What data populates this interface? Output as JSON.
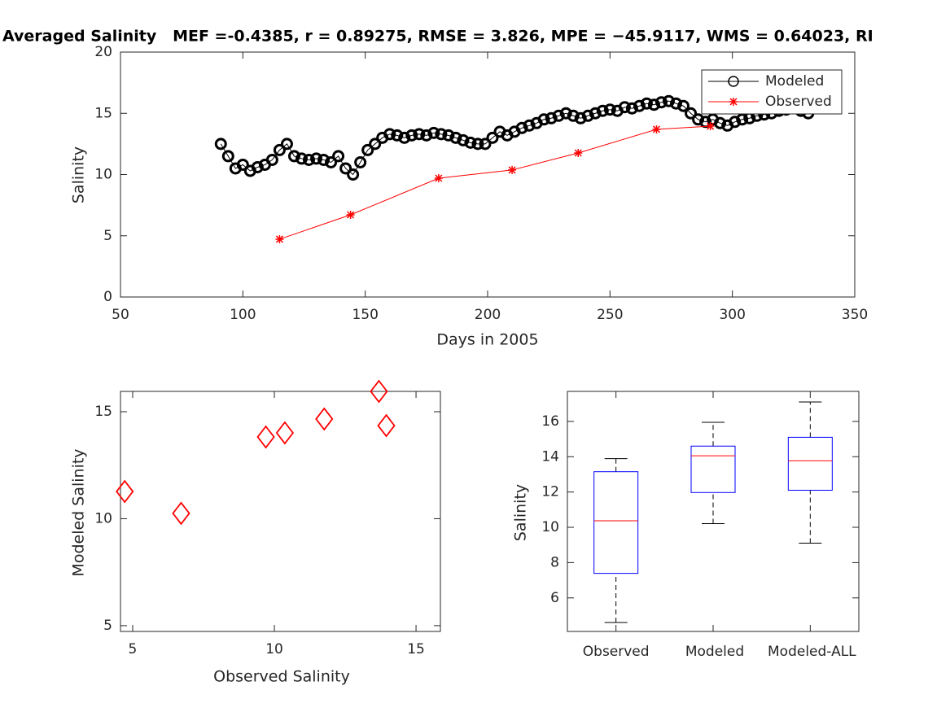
{
  "chart_data": [
    {
      "type": "line",
      "title": "Averaged Salinity   MEF =-0.4385, r = 0.89275, RMSE = 3.826, MPE = −45.9117, WMS = 0.64023, RI",
      "xlabel": "Days in 2005",
      "ylabel": "Salinity",
      "xlim": [
        50,
        350
      ],
      "xticks": [
        50,
        100,
        150,
        200,
        250,
        300,
        350
      ],
      "ylim": [
        0,
        20
      ],
      "yticks": [
        0,
        5,
        10,
        15,
        20
      ],
      "legend": "northeast",
      "series": [
        {
          "name": "Modeled",
          "color": "#000000",
          "marker": "circle",
          "x": [
            91,
            94,
            97,
            100,
            103,
            106,
            109,
            112,
            115,
            118,
            121,
            124,
            127,
            130,
            133,
            136,
            139,
            142,
            145,
            148,
            151,
            154,
            157,
            160,
            163,
            166,
            169,
            172,
            175,
            178,
            181,
            184,
            187,
            190,
            193,
            196,
            199,
            202,
            205,
            208,
            211,
            214,
            217,
            220,
            223,
            226,
            229,
            232,
            235,
            238,
            241,
            244,
            247,
            250,
            253,
            256,
            259,
            262,
            265,
            268,
            271,
            274,
            277,
            280,
            283,
            286,
            289,
            292,
            295,
            298,
            301,
            304,
            307,
            310,
            313,
            316,
            319,
            322,
            325,
            328,
            331
          ],
          "values": [
            12.5,
            11.5,
            10.5,
            10.8,
            10.3,
            10.6,
            10.8,
            11.2,
            12.0,
            12.5,
            11.5,
            11.3,
            11.2,
            11.3,
            11.2,
            11.0,
            11.5,
            10.5,
            10.0,
            11.0,
            12.0,
            12.5,
            13.0,
            13.3,
            13.2,
            13.0,
            13.2,
            13.3,
            13.2,
            13.4,
            13.3,
            13.2,
            13.0,
            12.8,
            12.6,
            12.5,
            12.5,
            13.0,
            13.5,
            13.2,
            13.5,
            13.8,
            14.0,
            14.2,
            14.5,
            14.6,
            14.8,
            15.0,
            14.8,
            14.6,
            14.8,
            15.0,
            15.2,
            15.3,
            15.2,
            15.5,
            15.4,
            15.6,
            15.8,
            15.7,
            15.9,
            16.0,
            15.8,
            15.6,
            15.0,
            14.5,
            14.3,
            14.5,
            14.2,
            14.0,
            14.3,
            14.5,
            14.6,
            14.8,
            14.9,
            15.0,
            15.2,
            15.3,
            15.5,
            15.2,
            15.0
          ]
        },
        {
          "name": "Observed",
          "color": "#ff0000",
          "marker": "star",
          "x": [
            115,
            144,
            180,
            210,
            237,
            269,
            291
          ],
          "values": [
            4.72,
            6.71,
            9.7,
            10.37,
            11.76,
            13.69,
            13.95
          ]
        }
      ]
    },
    {
      "type": "scatter",
      "xlabel": "Observed Salinity",
      "ylabel": "Modeled Salinity",
      "xlim": [
        4.57,
        15.86
      ],
      "xticks": [
        5,
        10,
        15
      ],
      "ylim": [
        4.73,
        15.95
      ],
      "yticks": [
        5,
        10,
        15
      ],
      "color": "#ff0000",
      "marker": "diamond",
      "x": [
        4.72,
        6.71,
        9.7,
        10.37,
        11.76,
        13.69,
        13.95
      ],
      "values": [
        11.27,
        10.25,
        13.82,
        14.01,
        14.66,
        15.95,
        14.35
      ]
    },
    {
      "type": "box",
      "ylabel": "Salinity",
      "ylim": [
        4.1,
        17.7
      ],
      "yticks": [
        6,
        8,
        10,
        12,
        14,
        16
      ],
      "categories": [
        "Observed",
        "Modeled",
        "Modeled-ALL"
      ],
      "box_color": "#0000ff",
      "median_color": "#ff0000",
      "whisker_color": "#000000",
      "stats": [
        {
          "low": 4.61,
          "q1": 7.39,
          "median": 10.37,
          "q3": 13.15,
          "high": 13.89
        },
        {
          "low": 10.21,
          "q1": 11.97,
          "median": 14.05,
          "q3": 14.6,
          "high": 15.95
        },
        {
          "low": 9.1,
          "q1": 12.1,
          "median": 13.77,
          "q3": 15.1,
          "high": 17.1
        }
      ]
    }
  ]
}
